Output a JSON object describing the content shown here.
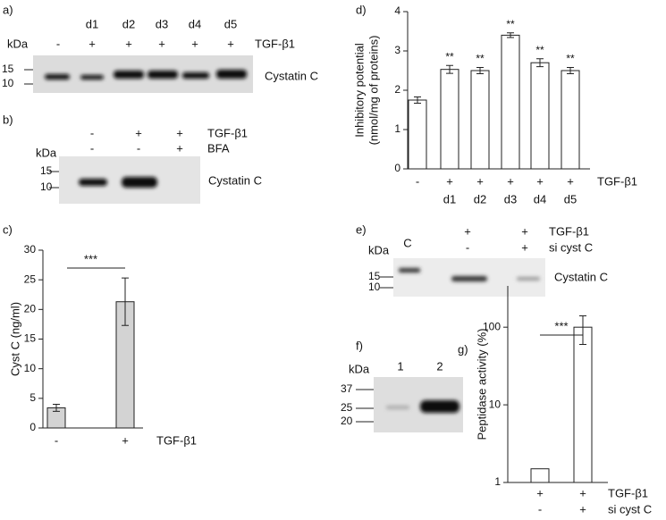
{
  "chart_data": [
    {
      "type": "bar",
      "panel": "c)",
      "ylabel": "Cyst C (ng/ml)",
      "categories": [
        "-",
        "+"
      ],
      "xlabel": "TGF-β1",
      "values": [
        3.4,
        21.3
      ],
      "errors": [
        0.6,
        4.0
      ],
      "color": "#d3d3d3",
      "significance": "***",
      "ylim": [
        0,
        30
      ],
      "yticks": [
        0,
        5,
        10,
        15,
        20,
        25,
        30
      ]
    },
    {
      "type": "bar",
      "panel": "d)",
      "ylabel": [
        "Inhibitory potential",
        "(nmol/mg of proteins)"
      ],
      "categories": [
        "-",
        "+",
        "+",
        "+",
        "+",
        "+"
      ],
      "categories2": [
        null,
        "d1",
        "d2",
        "d3",
        "d4",
        "d5"
      ],
      "xlabel": "TGF-β1",
      "values": [
        1.75,
        2.53,
        2.5,
        3.4,
        2.7,
        2.5
      ],
      "errors": [
        0.08,
        0.1,
        0.08,
        0.06,
        0.1,
        0.08
      ],
      "value_annotations": [
        null,
        "**",
        "**",
        "**",
        "**",
        "**"
      ],
      "color": "#ffffff",
      "ylim": [
        0,
        4
      ],
      "yticks": [
        0,
        1,
        2,
        3,
        4
      ]
    },
    {
      "type": "bar",
      "panel": "g)",
      "ylabel": "Peptidase activity (%)",
      "log_scale": true,
      "categories": [
        "+",
        "+"
      ],
      "categories2": [
        "-",
        "+"
      ],
      "xlabel": "TGF-β1",
      "xlabel2": "si cyst C",
      "values": [
        1.5,
        100
      ],
      "errors": [
        null,
        40
      ],
      "color": "#ffffff",
      "significance": "***",
      "ylim": [
        1,
        340
      ],
      "yticks": [
        1,
        10,
        100
      ]
    }
  ],
  "blots": {
    "a": {
      "panel": "a)",
      "lanes": [
        "d1",
        "d2",
        "d3",
        "d4",
        "d5"
      ],
      "kda": "kDa",
      "treatment": [
        "-",
        "+",
        "+",
        "+",
        "+",
        "+"
      ],
      "treatment_label": "TGF-β1",
      "markers": [
        "15",
        "10"
      ],
      "protein": "Cystatin C"
    },
    "b": {
      "panel": "b)",
      "treatment": [
        "-",
        "+",
        "+"
      ],
      "treatment_label": "TGF-β1",
      "treatment2": [
        "-",
        "-",
        "+"
      ],
      "treatment2_label": "BFA",
      "kda": "kDa",
      "markers": [
        "15",
        "10"
      ],
      "protein": "Cystatin C"
    },
    "e": {
      "panel": "e)",
      "kda": "kDa",
      "lanes": [
        "C"
      ],
      "treatment": [
        "+",
        "+"
      ],
      "treatment_label": "TGF-β1",
      "treatment2": [
        "-",
        "+"
      ],
      "treatment2_label": "si cyst C",
      "markers": [
        "15",
        "10"
      ],
      "protein": "Cystatin C"
    },
    "f": {
      "panel": "f)",
      "kda": "kDa",
      "lanes": [
        "1",
        "2"
      ],
      "markers": [
        "37",
        "25",
        "20"
      ]
    }
  }
}
